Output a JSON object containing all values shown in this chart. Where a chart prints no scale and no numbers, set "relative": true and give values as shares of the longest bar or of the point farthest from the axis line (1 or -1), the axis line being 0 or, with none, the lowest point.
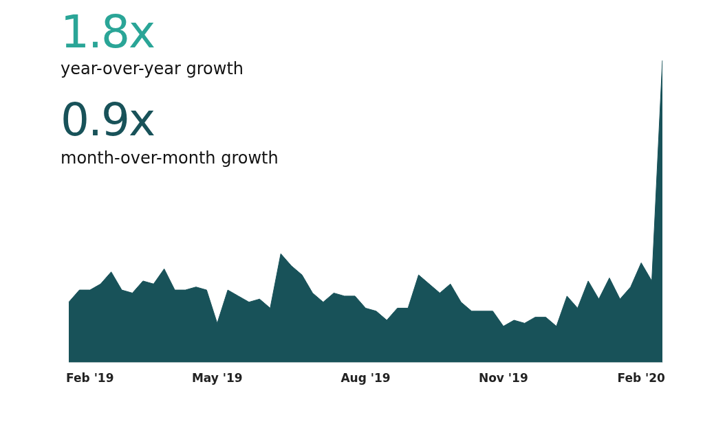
{
  "chart_data": {
    "type": "area",
    "title": "1.8x",
    "subtitle": "year-over-year growth",
    "annotations": [
      "0.9x",
      "month-over-month growth"
    ],
    "relative": true,
    "categories": [
      null,
      null,
      "Feb '19",
      null,
      null,
      null,
      null,
      null,
      null,
      null,
      null,
      null,
      null,
      null,
      "May '19",
      null,
      null,
      null,
      null,
      null,
      null,
      null,
      null,
      null,
      null,
      null,
      null,
      null,
      "Aug '19",
      null,
      null,
      null,
      null,
      null,
      null,
      null,
      null,
      null,
      null,
      null,
      null,
      "Nov '19",
      null,
      null,
      null,
      null,
      null,
      null,
      null,
      null,
      null,
      null,
      null,
      null,
      "Feb '20",
      null,
      null
    ],
    "series": [
      {
        "color": "#185259",
        "values": [
          0.2,
          0.24,
          0.24,
          0.26,
          0.3,
          0.24,
          0.23,
          0.27,
          0.26,
          0.31,
          0.24,
          0.24,
          0.25,
          0.24,
          0.13,
          0.24,
          0.22,
          0.2,
          0.21,
          0.18,
          0.36,
          0.32,
          0.29,
          0.23,
          0.2,
          0.23,
          0.22,
          0.22,
          0.18,
          0.17,
          0.14,
          0.18,
          0.18,
          0.29,
          0.26,
          0.23,
          0.26,
          0.2,
          0.17,
          0.17,
          0.17,
          0.12,
          0.14,
          0.13,
          0.15,
          0.15,
          0.12,
          0.22,
          0.18,
          0.27,
          0.21,
          0.28,
          0.21,
          0.25,
          0.33,
          0.27,
          1
        ]
      }
    ],
    "grid": false,
    "legend": false,
    "marker": "none"
  }
}
